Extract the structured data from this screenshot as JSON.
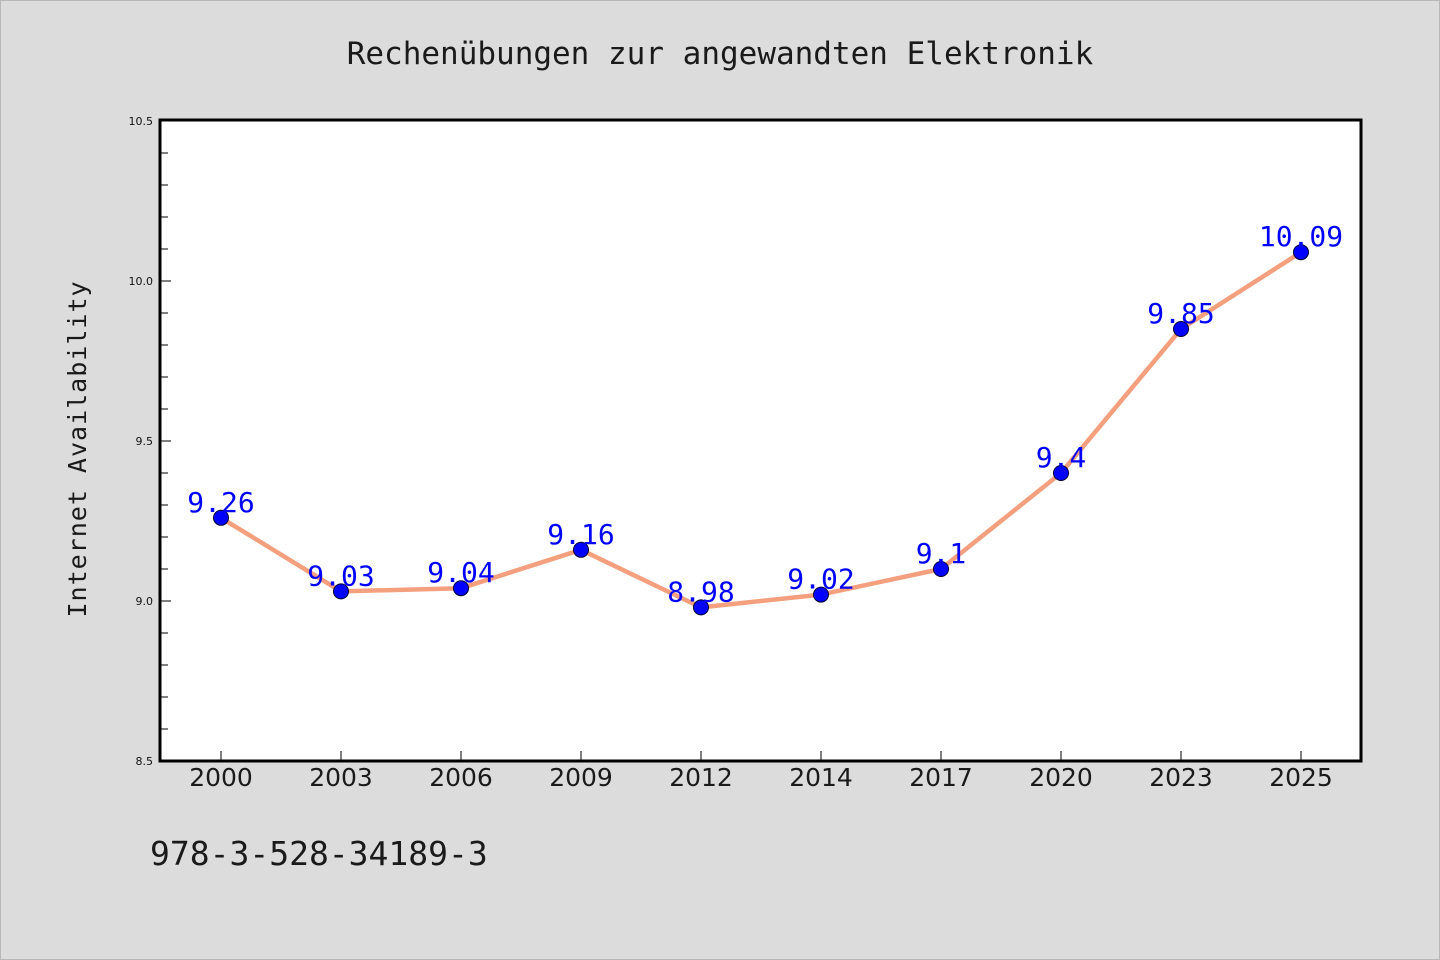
{
  "chart_data": {
    "type": "line",
    "title": "Rechenübungen zur angewandten Elektronik",
    "xlabel": "",
    "ylabel": "Internet Availability",
    "categories": [
      "2000",
      "2003",
      "2006",
      "2009",
      "2012",
      "2014",
      "2017",
      "2020",
      "2023",
      "2025"
    ],
    "series": [
      {
        "values": [
          9.26,
          9.03,
          9.04,
          9.16,
          8.98,
          9.02,
          9.1,
          9.4,
          9.85,
          10.09
        ],
        "data_labels": [
          "9.26",
          "9.03",
          "9.04",
          "9.16",
          "8.98",
          "9.02",
          "9.1",
          "9.4",
          "9.85",
          "10.09"
        ]
      }
    ],
    "ylim": [
      8.5,
      10.5
    ],
    "yticks": [
      "8.5",
      "9.0",
      "9.5",
      "10.0",
      "10.5"
    ],
    "grid": false,
    "legend": "none",
    "line_color": "#f4a07e",
    "marker_color": "#0000ff",
    "label_color": "#0000ff",
    "background_color": "#dcdcdc",
    "plot_background": "#ffffff"
  },
  "footer": {
    "isbn": "978-3-528-34189-3"
  }
}
